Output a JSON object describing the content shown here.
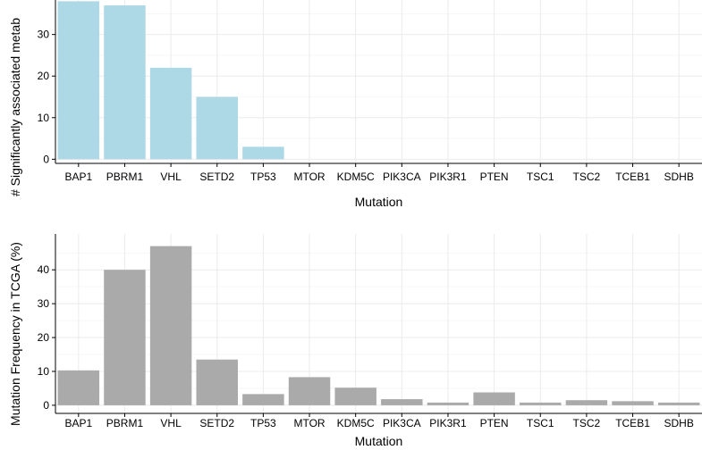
{
  "chart_data": [
    {
      "type": "bar",
      "title": "",
      "xlabel": "Mutation",
      "ylabel": "# Significantly associated metab",
      "categories": [
        "BAP1",
        "PBRM1",
        "VHL",
        "SETD2",
        "TP53",
        "MTOR",
        "KDM5C",
        "PIK3CA",
        "PIK3R1",
        "PTEN",
        "TSC1",
        "TSC2",
        "TCEB1",
        "SDHB"
      ],
      "values": [
        38,
        37,
        22,
        15,
        3,
        0,
        0,
        0,
        0,
        0,
        0,
        0,
        0,
        0
      ],
      "yticks": [
        0,
        10,
        20,
        30
      ],
      "ylim": [
        -1,
        38.3
      ],
      "bar_color": "#add8e6",
      "grid": true,
      "legend": "none"
    },
    {
      "type": "bar",
      "title": "",
      "xlabel": "Mutation",
      "ylabel": "Mutation Frequency in TCGA (%)",
      "categories": [
        "BAP1",
        "PBRM1",
        "VHL",
        "SETD2",
        "TP53",
        "MTOR",
        "KDM5C",
        "PIK3CA",
        "PIK3R1",
        "PTEN",
        "TSC1",
        "TSC2",
        "TCEB1",
        "SDHB"
      ],
      "values": [
        10.3,
        40,
        47,
        13.5,
        3.3,
        8.3,
        5.2,
        1.8,
        0.8,
        3.8,
        0.8,
        1.5,
        1.2,
        0.8
      ],
      "yticks": [
        0,
        10,
        20,
        30,
        40
      ],
      "ylim": [
        -2.4,
        50.6
      ],
      "bar_color": "#aaaaaa",
      "grid": true,
      "legend": "none"
    }
  ]
}
